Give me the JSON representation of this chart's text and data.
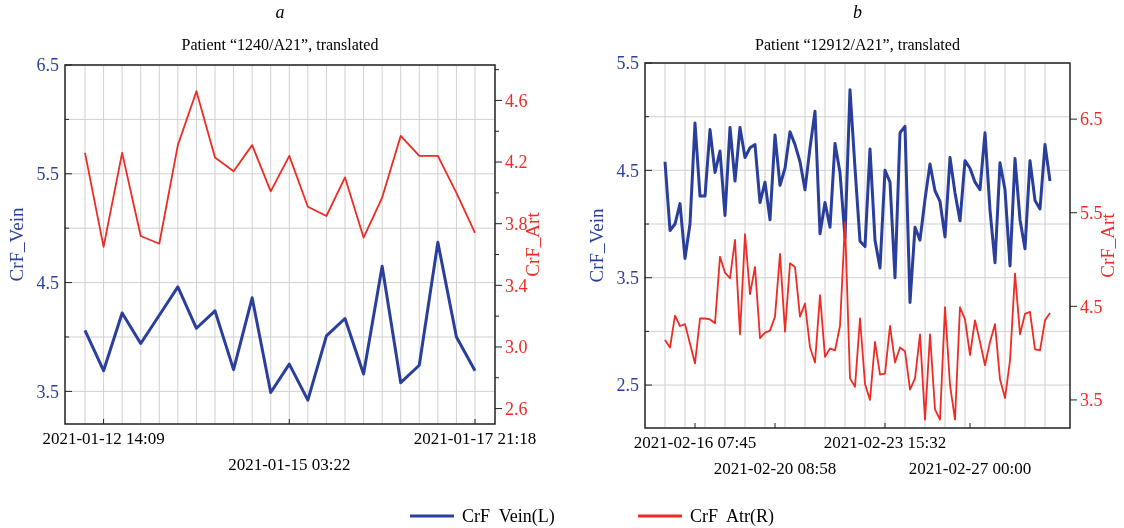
{
  "chart_data": [
    {
      "type": "line",
      "title": "a",
      "subtitle": "Patient “1240/A21”, translated",
      "ylabel": "CrF_Vein",
      "y2label": "CrF_Art",
      "categories": [
        null,
        "2021-01-12 14:09",
        null,
        null,
        null,
        null,
        null,
        null,
        null,
        null,
        null,
        "2021-01-15 03:22",
        null,
        null,
        null,
        null,
        null,
        null,
        null,
        null,
        null,
        "2021-01-17 21:18"
      ],
      "series": [
        {
          "name": "CrF  Vein(L)",
          "color": "#2a3f9c",
          "values": [
            4.06,
            3.69,
            4.22,
            3.94,
            4.2,
            4.46,
            4.08,
            4.24,
            3.7,
            4.36,
            3.49,
            3.75,
            3.42,
            4.01,
            4.17,
            3.66,
            4.65,
            3.58,
            3.74,
            4.87,
            4.0,
            3.69
          ]
        },
        {
          "name": "CrF  Atr(R)",
          "color": "#ee2b24",
          "axis": "y2",
          "values": [
            4.26,
            3.65,
            4.26,
            3.72,
            3.67,
            4.31,
            4.66,
            4.23,
            4.14,
            4.31,
            4.01,
            4.24,
            3.91,
            3.85,
            4.1,
            3.71,
            3.97,
            4.37,
            4.24,
            4.24,
            4.0,
            3.74
          ]
        }
      ],
      "ylim": [
        3.2,
        6.5
      ],
      "yticks": [
        3.5,
        {
          "value": 4.0,
          "label": null
        },
        4.5,
        {
          "value": 5.0,
          "label": null
        },
        5.5,
        {
          "value": 6.0,
          "label": null
        },
        6.5
      ],
      "y2lim": [
        2.5,
        4.83
      ],
      "y2ticks": [
        2.6,
        {
          "value": 2.8,
          "label": null
        },
        {
          "value": 3,
          "label": "3.0"
        },
        {
          "value": 3.2,
          "label": null
        },
        3.4,
        {
          "value": 3.6,
          "label": null
        },
        3.8,
        {
          "value": 4,
          "label": null
        },
        4.2,
        {
          "value": 4.4,
          "label": null
        },
        4.6,
        {
          "value": 4.8,
          "label": null
        }
      ],
      "grid": true,
      "legend": "bottom"
    },
    {
      "type": "line",
      "title": "b",
      "subtitle": "Patient “12912/A21”, translated",
      "ylabel": "CrF_Vein",
      "y2label": "CrF_Art",
      "categories": [
        null,
        null,
        null,
        null,
        null,
        null,
        "2021-02-16 07:45",
        null,
        null,
        null,
        null,
        null,
        null,
        null,
        null,
        null,
        null,
        null,
        null,
        null,
        null,
        null,
        "2021-02-20 08:58",
        null,
        null,
        null,
        null,
        null,
        null,
        null,
        null,
        null,
        null,
        null,
        null,
        null,
        null,
        null,
        null,
        null,
        null,
        null,
        null,
        null,
        "2021-02-23 15:32",
        null,
        null,
        null,
        null,
        null,
        null,
        null,
        null,
        null,
        null,
        null,
        null,
        null,
        null,
        null,
        null,
        "2021-02-27 00:00",
        null,
        null,
        null,
        null,
        null,
        null,
        null,
        null,
        null,
        null,
        null,
        null,
        null,
        null,
        null,
        null
      ],
      "series": [
        {
          "color": "#2a3f9c",
          "values": [
            4.58,
            3.94,
            4.0,
            4.19,
            3.68,
            4.0,
            4.94,
            4.26,
            4.26,
            4.88,
            4.48,
            4.68,
            4.08,
            4.9,
            4.4,
            4.9,
            4.62,
            4.71,
            4.74,
            4.2,
            4.39,
            4.04,
            4.83,
            4.36,
            4.52,
            4.86,
            4.74,
            4.58,
            4.32,
            4.71,
            5.05,
            3.91,
            4.2,
            3.97,
            4.75,
            4.48,
            3.87,
            5.25,
            4.52,
            3.84,
            3.79,
            4.7,
            3.85,
            3.59,
            4.5,
            4.39,
            3.5,
            4.85,
            4.91,
            3.27,
            3.97,
            3.85,
            4.23,
            4.56,
            4.31,
            4.21,
            3.88,
            4.62,
            4.29,
            4.03,
            4.59,
            4.52,
            4.39,
            4.32,
            4.85,
            4.13,
            3.64,
            4.57,
            4.32,
            3.61,
            4.61,
            4.04,
            3.77,
            4.59,
            4.22,
            4.14,
            4.74,
            4.4
          ]
        },
        {
          "color": "#ee2b24",
          "axis": "y2",
          "values": [
            4.14,
            4.06,
            4.4,
            4.29,
            4.31,
            4.1,
            3.89,
            4.37,
            4.37,
            4.36,
            4.32,
            5.03,
            4.86,
            4.8,
            5.21,
            4.2,
            5.27,
            4.63,
            4.92,
            4.16,
            4.22,
            4.24,
            4.39,
            5.06,
            4.23,
            4.96,
            4.92,
            4.39,
            4.53,
            4.06,
            3.9,
            4.62,
            3.96,
            4.05,
            4.03,
            4.29,
            5.4,
            3.73,
            3.64,
            4.37,
            3.67,
            3.5,
            4.12,
            3.77,
            3.78,
            4.29,
            3.9,
            4.06,
            4.02,
            3.61,
            3.73,
            4.2,
            3.29,
            4.2,
            3.4,
            3.29,
            4.49,
            3.66,
            3.29,
            4.49,
            4.36,
            3.98,
            4.35,
            4.12,
            3.87,
            4.12,
            4.31,
            3.72,
            3.52,
            3.92,
            4.85,
            4.2,
            4.42,
            4.44,
            4.04,
            4.03,
            4.35,
            4.43
          ]
        }
      ],
      "ylim": [
        2.1,
        5.5
      ],
      "yticks": [
        2.5,
        {
          "value": 3.0,
          "label": null
        },
        3.5,
        {
          "value": 4.0,
          "label": null
        },
        4.5,
        {
          "value": 5.0,
          "label": null
        },
        5.5
      ],
      "y2lim": [
        3.2,
        7.1
      ],
      "y2ticks": [
        3.5,
        4.5,
        5.5,
        6.5
      ],
      "grid": true
    }
  ]
}
